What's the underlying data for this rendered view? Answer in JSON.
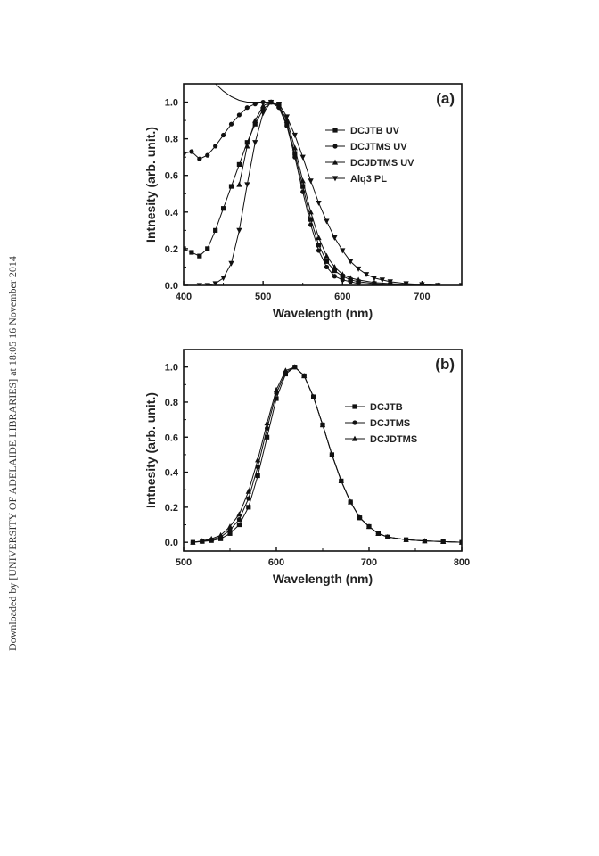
{
  "watermark": "Downloaded by [UNIVERSITY OF ADELAIDE LIBRARIES] at 18:05 16 November 2014",
  "chart_data": [
    {
      "type": "line",
      "panel_label": "(a)",
      "xlabel": "Wavelength (nm)",
      "ylabel": "Intnesity (arb. unit.)",
      "xlim": [
        400,
        750
      ],
      "ylim": [
        0,
        1.1
      ],
      "xticks": [
        400,
        500,
        600,
        700
      ],
      "yticks": [
        0.0,
        0.2,
        0.4,
        0.6,
        0.8,
        1.0
      ],
      "ytick_labels": [
        "0.0",
        "0.2",
        "0.4",
        "0.6",
        "0.8",
        "1.0"
      ],
      "grid": false,
      "legend_position": "top-right",
      "series": [
        {
          "name": "DCJTB UV",
          "marker": "square",
          "x": [
            400,
            410,
            420,
            430,
            440,
            450,
            460,
            470,
            480,
            490,
            500,
            510,
            520,
            530,
            540,
            550,
            560,
            570,
            580,
            590,
            600,
            610,
            620,
            640,
            660,
            680,
            700,
            720,
            750
          ],
          "y": [
            0.2,
            0.18,
            0.16,
            0.2,
            0.3,
            0.42,
            0.54,
            0.66,
            0.78,
            0.88,
            0.96,
            1.0,
            0.98,
            0.88,
            0.72,
            0.54,
            0.36,
            0.22,
            0.13,
            0.08,
            0.05,
            0.03,
            0.02,
            0.01,
            0.005,
            0.0,
            0.0,
            0.0,
            0.0
          ]
        },
        {
          "name": "DCJTMS UV",
          "marker": "circle",
          "x": [
            400,
            410,
            420,
            430,
            440,
            450,
            460,
            470,
            480,
            490,
            500,
            510,
            520,
            530,
            540,
            550,
            560,
            570,
            580,
            590,
            600,
            610,
            620,
            640,
            660,
            680,
            700,
            720,
            750
          ],
          "y": [
            0.72,
            0.73,
            0.69,
            0.71,
            0.76,
            0.82,
            0.88,
            0.93,
            0.97,
            0.99,
            1.0,
            1.0,
            0.97,
            0.87,
            0.7,
            0.51,
            0.33,
            0.19,
            0.1,
            0.05,
            0.03,
            0.02,
            0.01,
            0.005,
            0.0,
            0.0,
            0.0,
            0.0,
            0.0
          ]
        },
        {
          "name": "DCJDTMS UV",
          "marker": "triangle-up",
          "x": [
            470,
            480,
            490,
            500,
            510,
            520,
            530,
            540,
            550,
            560,
            570,
            580,
            590,
            600,
            610,
            620,
            640,
            660,
            680,
            700,
            720,
            750
          ],
          "y": [
            0.55,
            0.76,
            0.9,
            0.98,
            1.0,
            0.98,
            0.9,
            0.75,
            0.57,
            0.4,
            0.26,
            0.16,
            0.1,
            0.06,
            0.04,
            0.03,
            0.015,
            0.01,
            0.005,
            0.0,
            0.0,
            0.0
          ]
        },
        {
          "name": "Alq3 PL",
          "marker": "triangle-down",
          "x": [
            420,
            430,
            440,
            450,
            460,
            470,
            480,
            490,
            500,
            510,
            520,
            530,
            540,
            550,
            560,
            570,
            580,
            590,
            600,
            610,
            620,
            630,
            640,
            650,
            660,
            680,
            700,
            720,
            750
          ],
          "y": [
            0.0,
            0.0,
            0.01,
            0.04,
            0.12,
            0.3,
            0.55,
            0.78,
            0.94,
            1.0,
            0.99,
            0.92,
            0.82,
            0.7,
            0.57,
            0.45,
            0.35,
            0.26,
            0.19,
            0.13,
            0.09,
            0.06,
            0.04,
            0.03,
            0.02,
            0.01,
            0.005,
            0.0,
            0.0
          ]
        }
      ],
      "extra_curve": {
        "note": "upper-left descending curve",
        "x": [
          440,
          450,
          460,
          470,
          480,
          490,
          500
        ],
        "y": [
          1.1,
          1.06,
          1.03,
          1.01,
          1.0,
          1.0,
          1.0
        ]
      }
    },
    {
      "type": "line",
      "panel_label": "(b)",
      "xlabel": "Wavelength (nm)",
      "ylabel": "Intnesity (arb. unit.)",
      "xlim": [
        500,
        800
      ],
      "ylim": [
        -0.05,
        1.1
      ],
      "xticks": [
        500,
        600,
        700,
        800
      ],
      "yticks": [
        0.0,
        0.2,
        0.4,
        0.6,
        0.8,
        1.0
      ],
      "ytick_labels": [
        "0.0",
        "0.2",
        "0.4",
        "0.6",
        "0.8",
        "1.0"
      ],
      "grid": false,
      "legend_position": "right",
      "series": [
        {
          "name": "DCJTB",
          "marker": "square",
          "x": [
            510,
            520,
            530,
            540,
            550,
            560,
            570,
            580,
            590,
            600,
            610,
            620,
            630,
            640,
            650,
            660,
            670,
            680,
            690,
            700,
            710,
            720,
            740,
            760,
            780,
            800
          ],
          "y": [
            0.0,
            0.005,
            0.01,
            0.02,
            0.05,
            0.1,
            0.2,
            0.38,
            0.6,
            0.82,
            0.96,
            1.0,
            0.95,
            0.83,
            0.67,
            0.5,
            0.35,
            0.23,
            0.14,
            0.09,
            0.05,
            0.03,
            0.015,
            0.008,
            0.004,
            0.0
          ]
        },
        {
          "name": "DCJTMS",
          "marker": "circle",
          "x": [
            510,
            520,
            530,
            540,
            550,
            560,
            570,
            580,
            590,
            600,
            610,
            620,
            630,
            640,
            650,
            660,
            670,
            680,
            690,
            700,
            710,
            720,
            740,
            760,
            780,
            800
          ],
          "y": [
            0.0,
            0.006,
            0.015,
            0.03,
            0.07,
            0.13,
            0.25,
            0.43,
            0.65,
            0.85,
            0.97,
            1.0,
            0.95,
            0.83,
            0.67,
            0.5,
            0.35,
            0.23,
            0.14,
            0.09,
            0.05,
            0.03,
            0.015,
            0.008,
            0.004,
            0.0
          ]
        },
        {
          "name": "DCJDTMS",
          "marker": "triangle-up",
          "x": [
            510,
            520,
            530,
            540,
            550,
            560,
            570,
            580,
            590,
            600,
            610,
            620,
            630,
            640,
            650,
            660,
            670,
            680,
            690,
            700,
            710,
            720,
            740,
            760,
            780,
            800
          ],
          "y": [
            0.0,
            0.008,
            0.02,
            0.04,
            0.09,
            0.16,
            0.29,
            0.47,
            0.68,
            0.87,
            0.98,
            1.0,
            0.95,
            0.83,
            0.67,
            0.5,
            0.35,
            0.23,
            0.14,
            0.09,
            0.05,
            0.03,
            0.015,
            0.008,
            0.004,
            0.0
          ]
        }
      ]
    }
  ]
}
